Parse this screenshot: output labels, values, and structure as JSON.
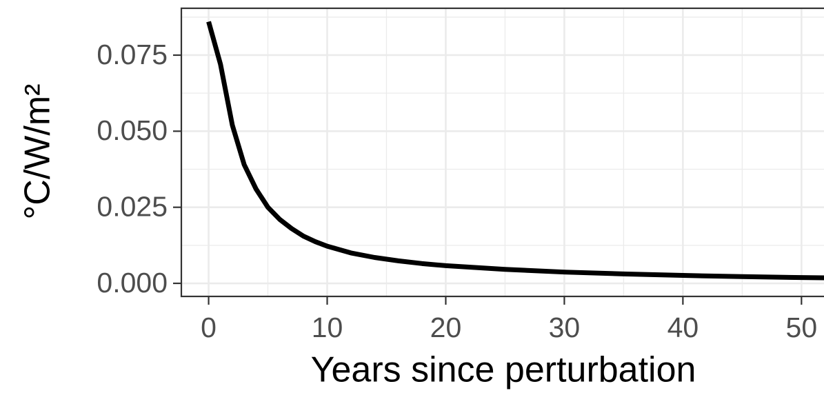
{
  "chart_data": {
    "type": "line",
    "xlabel": "Years since perturbation",
    "ylabel": "°C/W/m²",
    "x": [
      0,
      1,
      2,
      3,
      4,
      5,
      6,
      7,
      8,
      9,
      10,
      12,
      14,
      16,
      18,
      20,
      25,
      30,
      35,
      40,
      45,
      50,
      52
    ],
    "series": [
      {
        "color": "#000000",
        "values": [
          0.086,
          0.072,
          0.052,
          0.039,
          0.031,
          0.025,
          0.021,
          0.018,
          0.0155,
          0.0137,
          0.0122,
          0.01,
          0.0085,
          0.0074,
          0.0065,
          0.0058,
          0.0046,
          0.0037,
          0.0031,
          0.0026,
          0.0022,
          0.0019,
          0.0018
        ]
      }
    ],
    "xlim": [
      -2.3,
      51.9
    ],
    "ylim": [
      -0.0043,
      0.0904
    ],
    "xticks": [
      0,
      10,
      20,
      30,
      40,
      50
    ],
    "yticks": [
      {
        "value": 0,
        "label": "0.000"
      },
      0.025,
      {
        "value": 0.05,
        "label": "0.050"
      },
      0.075
    ],
    "xminorticks": [
      5,
      15,
      25,
      35,
      45
    ],
    "yminorticks": [
      0.0125,
      0.0375,
      0.0625,
      0.0875
    ],
    "grid": true
  }
}
